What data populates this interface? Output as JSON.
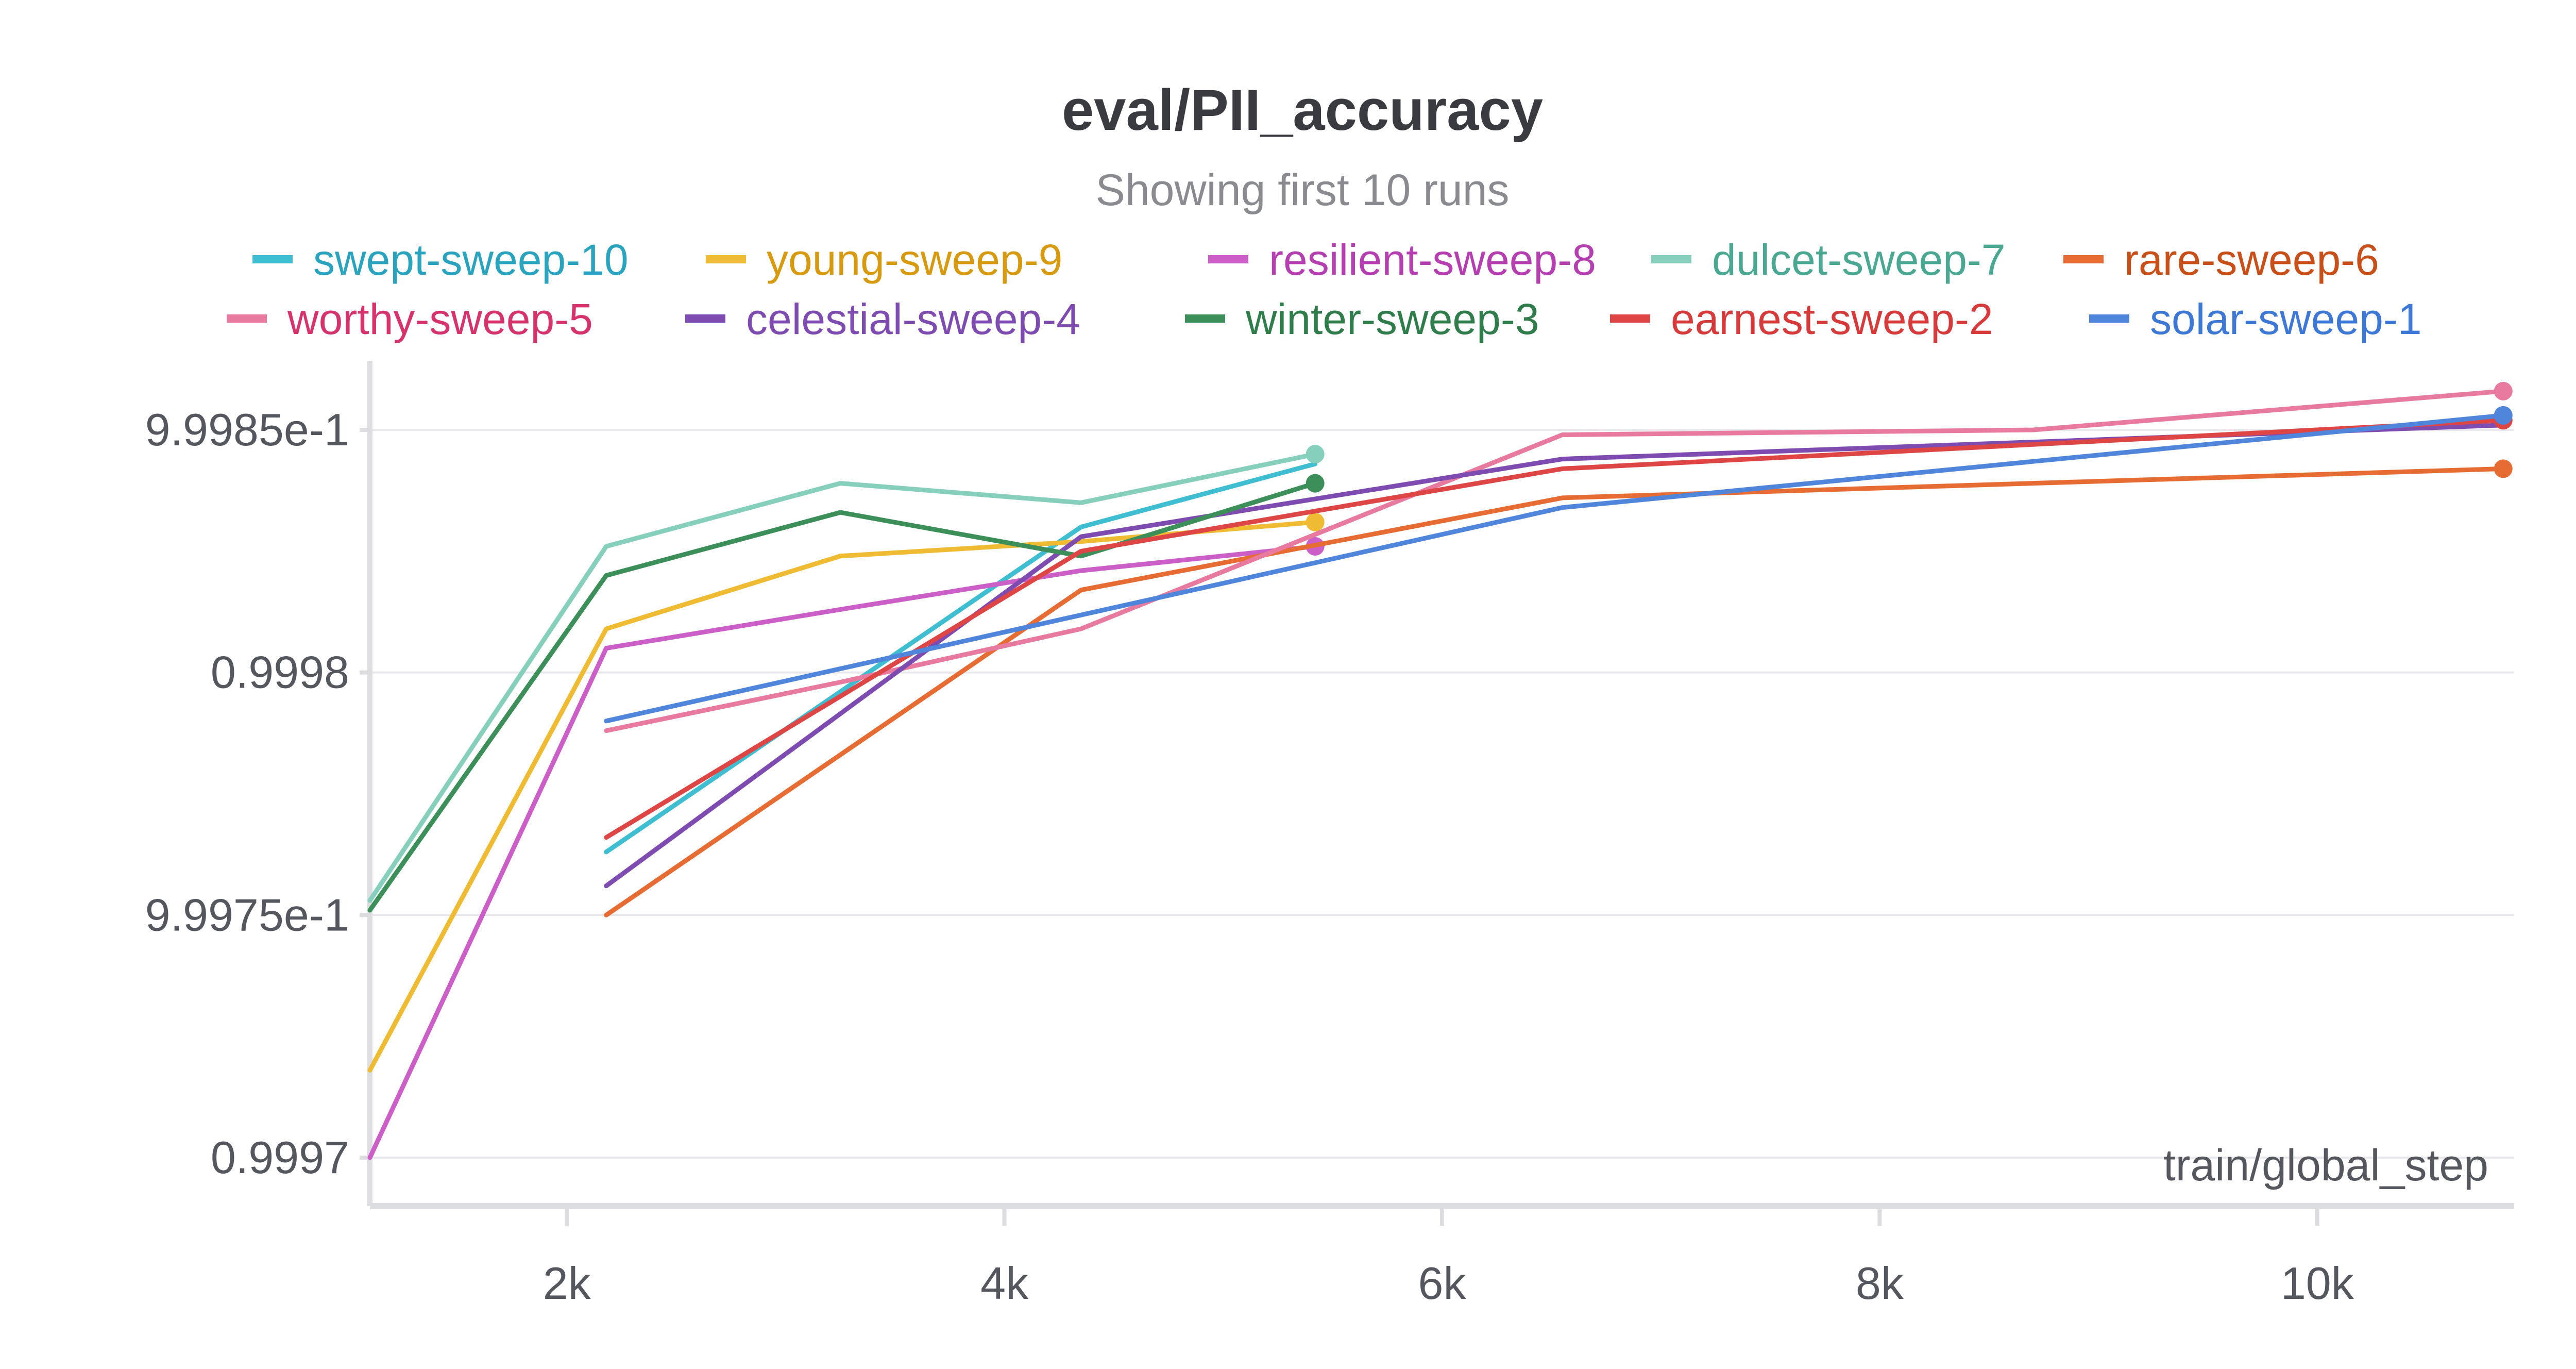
{
  "chart_data": {
    "type": "line",
    "title": "eval/PII_accuracy",
    "subtitle": "Showing first 10 runs",
    "xlabel": "train/global_step",
    "ylabel": "",
    "xlim": [
      1100,
      10900
    ],
    "ylim": [
      0.99969,
      0.99986
    ],
    "x_ticks": [
      {
        "value": 2000,
        "label": "2k"
      },
      {
        "value": 4000,
        "label": "4k"
      },
      {
        "value": 6000,
        "label": "6k"
      },
      {
        "value": 8000,
        "label": "8k"
      },
      {
        "value": 10000,
        "label": "10k"
      }
    ],
    "y_ticks": [
      {
        "value": 0.9997,
        "label": "0.9997"
      },
      {
        "value": 0.99975,
        "label": "9.9975e-1"
      },
      {
        "value": 0.9998,
        "label": "0.9998"
      },
      {
        "value": 0.99985,
        "label": "9.9985e-1"
      }
    ],
    "grid": true,
    "legend_position": "top",
    "series": [
      {
        "name": "swept-sweep-10",
        "color": "#3fbdd1",
        "label_color": "#2aa3bf",
        "x": [
          2180,
          4350,
          5420
        ],
        "y": [
          0.999763,
          0.99983,
          0.999843
        ],
        "end_marker": false
      },
      {
        "name": "young-sweep-9",
        "color": "#efbb33",
        "label_color": "#d79a0f",
        "x": [
          1100,
          2180,
          3250,
          4350,
          5420
        ],
        "y": [
          0.999718,
          0.999809,
          0.999824,
          0.999827,
          0.999831
        ],
        "end_marker": true
      },
      {
        "name": "resilient-sweep-8",
        "color": "#cc5ec8",
        "label_color": "#b53fb1",
        "x": [
          1100,
          2180,
          3250,
          4350,
          5420
        ],
        "y": [
          0.9997,
          0.999805,
          0.999813,
          0.999821,
          0.999826
        ],
        "end_marker": true
      },
      {
        "name": "dulcet-sweep-7",
        "color": "#87cfbd",
        "label_color": "#4aa892",
        "x": [
          1100,
          2180,
          3250,
          4350,
          5420
        ],
        "y": [
          0.999753,
          0.999826,
          0.999839,
          0.999835,
          0.999845
        ],
        "end_marker": true
      },
      {
        "name": "rare-sweep-6",
        "color": "#e66c33",
        "label_color": "#c94f18",
        "x": [
          2180,
          4350,
          6550,
          10850
        ],
        "y": [
          0.99975,
          0.999817,
          0.999836,
          0.999842
        ],
        "end_marker": true
      },
      {
        "name": "worthy-sweep-5",
        "color": "#e87a9f",
        "label_color": "#d6336c",
        "x": [
          2180,
          3250,
          4350,
          6550,
          8700,
          10850
        ],
        "y": [
          0.999788,
          0.999798,
          0.999809,
          0.999849,
          0.99985,
          0.999858
        ],
        "end_marker": true
      },
      {
        "name": "celestial-sweep-4",
        "color": "#7e4bb0",
        "label_color": "#7e4bb0",
        "x": [
          2180,
          4350,
          6550,
          10850
        ],
        "y": [
          0.999756,
          0.999828,
          0.999844,
          0.999851
        ],
        "end_marker": false
      },
      {
        "name": "winter-sweep-3",
        "color": "#3d8f5a",
        "label_color": "#2f7d4a",
        "x": [
          1100,
          2180,
          3250,
          4350,
          5420
        ],
        "y": [
          0.999751,
          0.99982,
          0.999833,
          0.999824,
          0.999839
        ],
        "end_marker": true
      },
      {
        "name": "earnest-sweep-2",
        "color": "#de4646",
        "label_color": "#d63a3a",
        "x": [
          2180,
          4350,
          6550,
          10850
        ],
        "y": [
          0.999766,
          0.999825,
          0.999842,
          0.999852
        ],
        "end_marker": true
      },
      {
        "name": "solar-sweep-1",
        "color": "#4f86dc",
        "label_color": "#3d78d6",
        "x": [
          2180,
          6550,
          10850
        ],
        "y": [
          0.99979,
          0.999834,
          0.999853
        ],
        "end_marker": true
      }
    ]
  }
}
